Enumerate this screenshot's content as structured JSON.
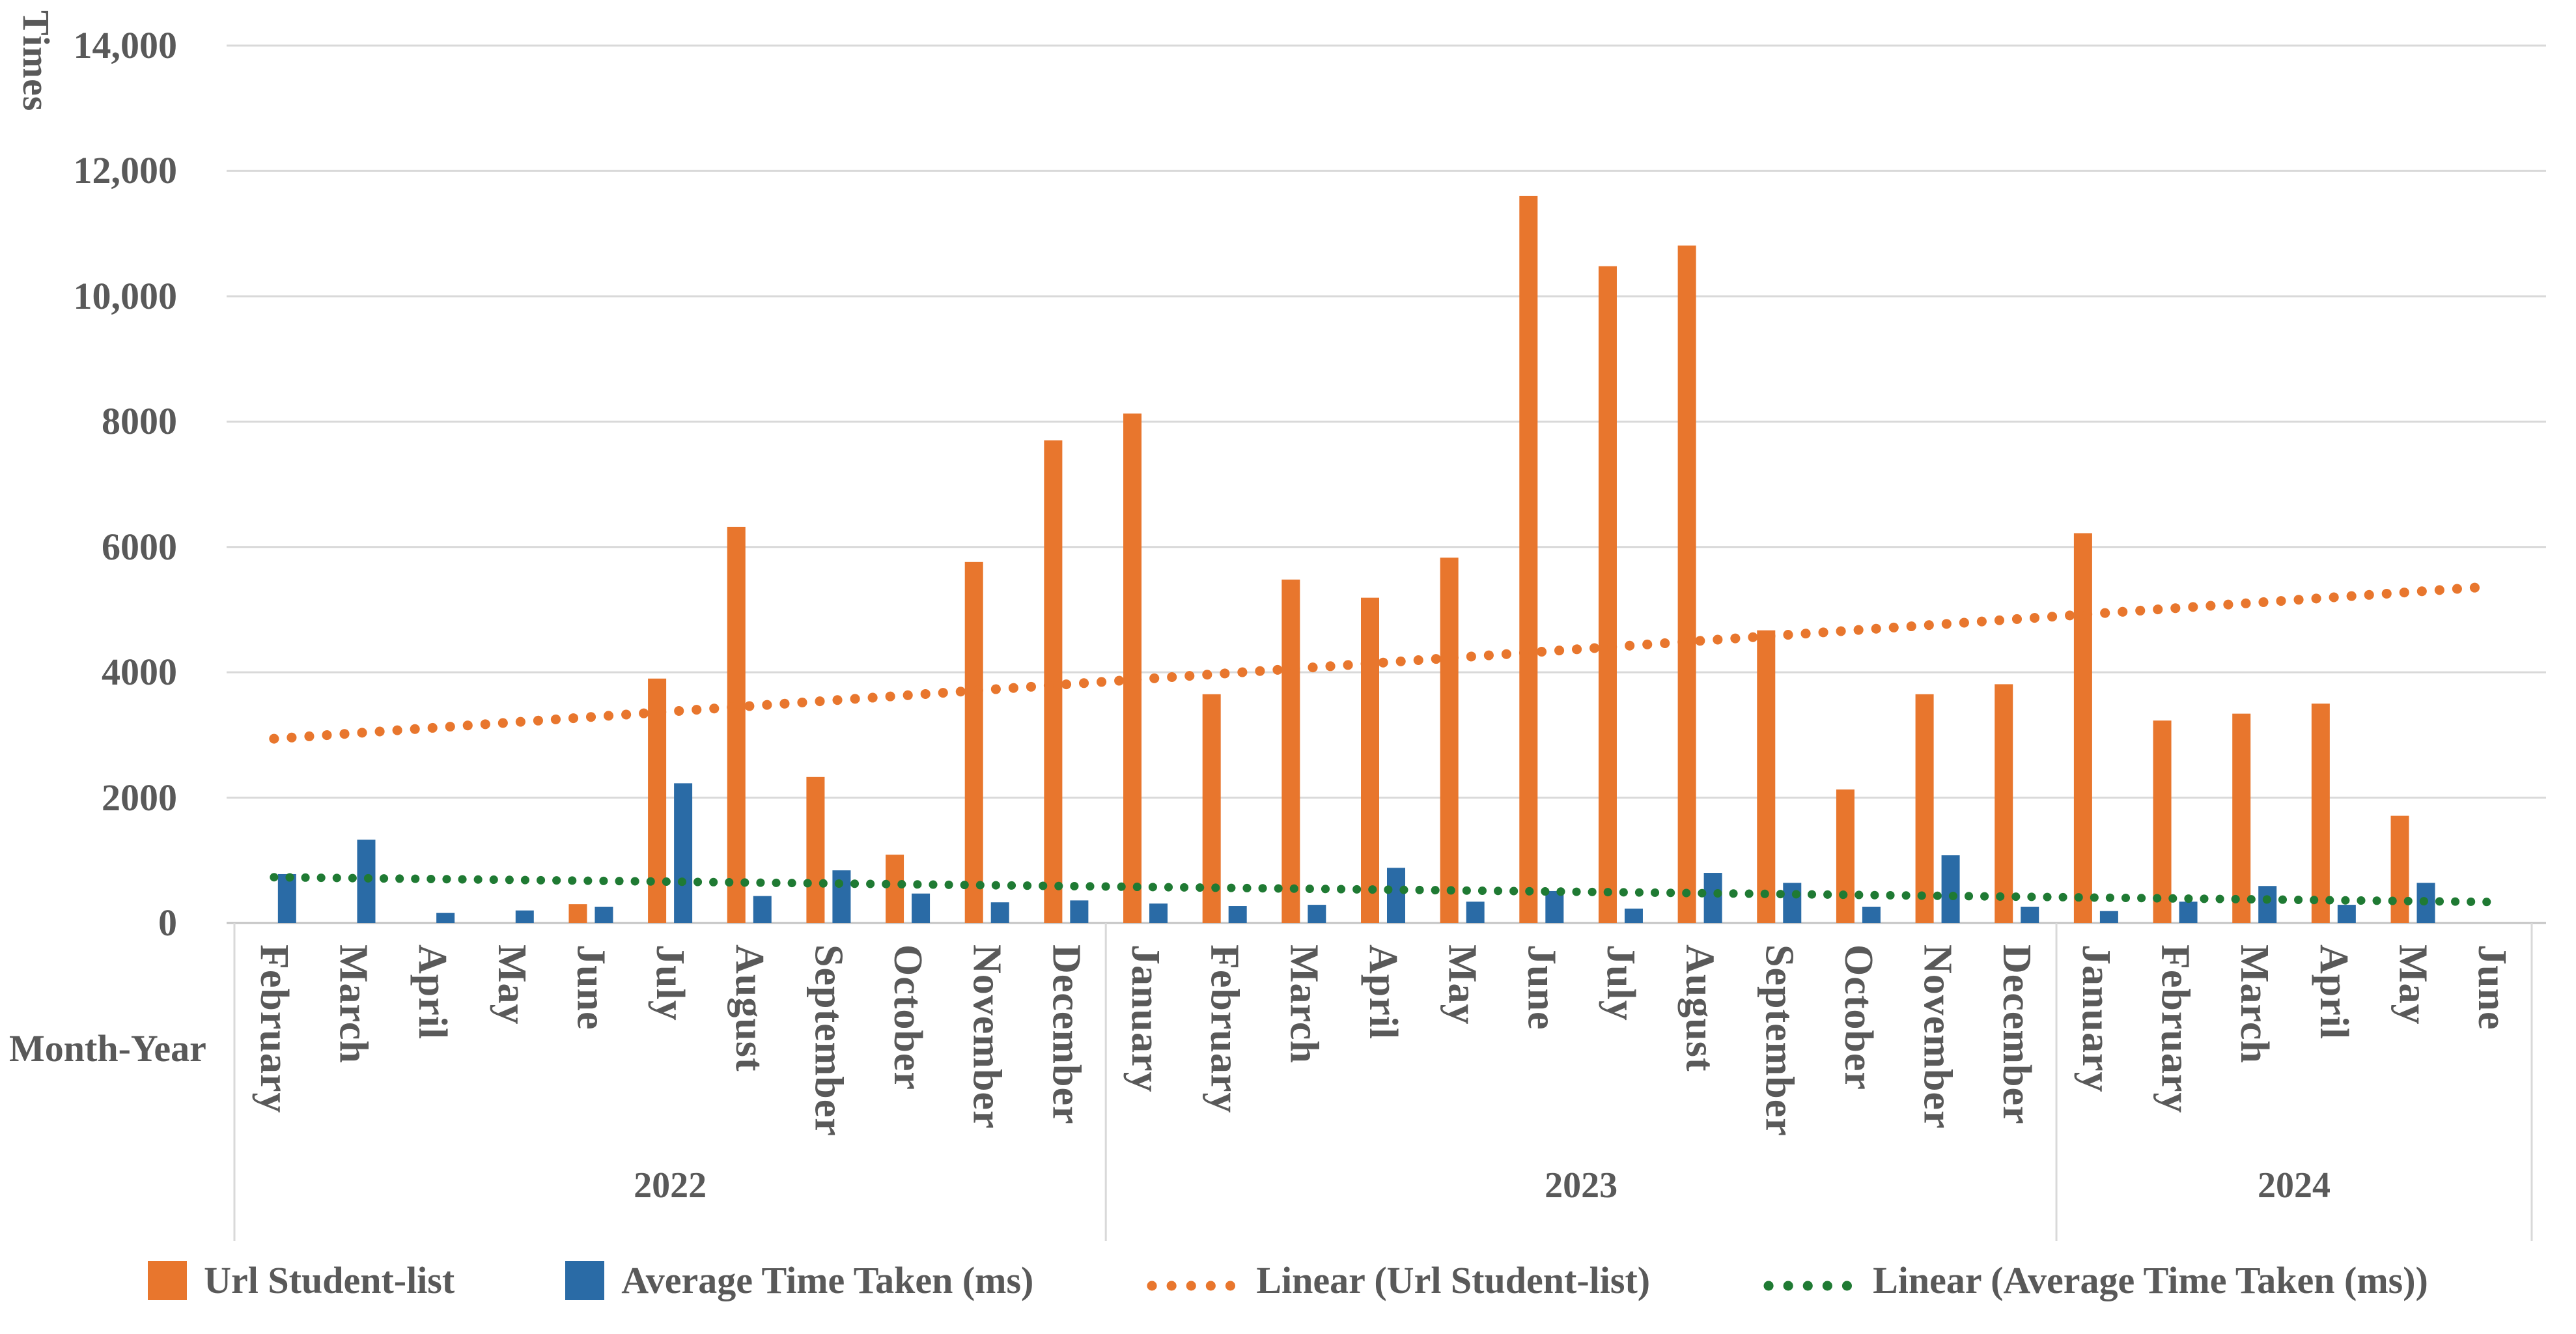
{
  "y_axis": {
    "title": "Times",
    "ticks": [
      "0",
      "2000",
      "4000",
      "6000",
      "8000",
      "10,000",
      "12,000",
      "14,000"
    ],
    "tick_step": 2000
  },
  "x_axis": {
    "title": "Month-Year",
    "year_groups": [
      {
        "label": "2022",
        "months": [
          "February",
          "March",
          "April",
          "May",
          "June",
          "July",
          "August",
          "September",
          "October",
          "November",
          "December"
        ]
      },
      {
        "label": "2023",
        "months": [
          "January",
          "February",
          "March",
          "April",
          "May",
          "June",
          "July",
          "August",
          "September",
          "October",
          "November",
          "December"
        ]
      },
      {
        "label": "2024",
        "months": [
          "January",
          "February",
          "March",
          "April",
          "May",
          "June"
        ]
      }
    ]
  },
  "legend": [
    {
      "label": "Url Student-list",
      "swatch": "square",
      "color": "#E8762D"
    },
    {
      "label": "Average Time Taken (ms)",
      "swatch": "square",
      "color": "#2A6BA6"
    },
    {
      "label": "Linear (Url Student-list)",
      "swatch": "dots",
      "color": "#E8762D"
    },
    {
      "label": "Linear (Average Time Taken (ms))",
      "swatch": "dots",
      "color": "#1F7A33"
    }
  ],
  "colors": {
    "orange": "#E8762D",
    "blue": "#2A6BA6",
    "green": "#1F7A33",
    "grid": "#D9D9D9",
    "axis_line": "#C3C3C3",
    "text": "#595959"
  },
  "chart_data": {
    "type": "bar",
    "title": "",
    "xlabel": "Month-Year",
    "ylabel": "Times",
    "ylim": [
      0,
      14000
    ],
    "grid": true,
    "legend_position": "bottom",
    "categories": [
      "February 2022",
      "March 2022",
      "April 2022",
      "May 2022",
      "June 2022",
      "July 2022",
      "August 2022",
      "September 2022",
      "October 2022",
      "November 2022",
      "December 2022",
      "January 2023",
      "February 2023",
      "March 2023",
      "April 2023",
      "May 2023",
      "June 2023",
      "July 2023",
      "August 2023",
      "September 2023",
      "October 2023",
      "November 2023",
      "December 2023",
      "January 2024",
      "February 2024",
      "March 2024",
      "April 2024",
      "May 2024",
      "June 2024"
    ],
    "series": [
      {
        "name": "Url Student-list",
        "color": "#E8762D",
        "values": [
          0,
          0,
          0,
          0,
          300,
          3900,
          6320,
          2330,
          1090,
          5760,
          7700,
          8130,
          3650,
          5480,
          5190,
          5830,
          11600,
          10480,
          10810,
          4670,
          2130,
          3650,
          3810,
          6220,
          3230,
          3340,
          3500,
          1710,
          0
        ]
      },
      {
        "name": "Average Time Taken (ms)",
        "color": "#2A6BA6",
        "values": [
          780,
          1330,
          160,
          200,
          260,
          2230,
          430,
          840,
          470,
          330,
          360,
          310,
          270,
          290,
          880,
          340,
          510,
          230,
          800,
          640,
          260,
          1080,
          260,
          190,
          340,
          590,
          290,
          640,
          0
        ]
      }
    ],
    "trendlines": [
      {
        "name": "Linear (Url Student-list)",
        "color": "#E8762D",
        "start_value": 2940,
        "end_value": 5370
      },
      {
        "name": "Linear (Average Time Taken (ms))",
        "color": "#1F7A33",
        "start_value": 730,
        "end_value": 335
      }
    ]
  }
}
